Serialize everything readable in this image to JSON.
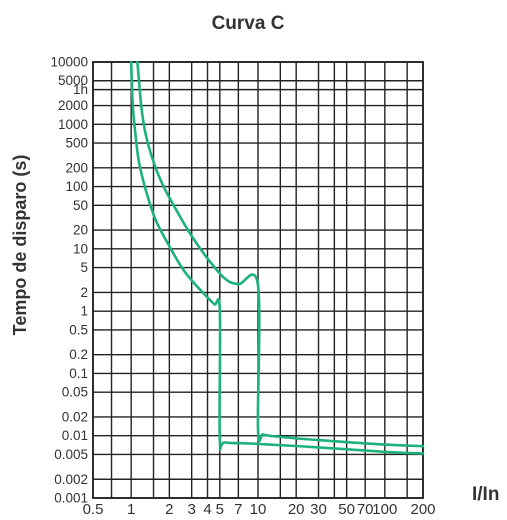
{
  "chart_data": {
    "type": "line",
    "title": "Curva C",
    "xlabel": "I/In",
    "ylabel": "Tempo de disparo (s)",
    "x_scale": "log",
    "y_scale": "log",
    "xlim": [
      0.5,
      200
    ],
    "ylim": [
      0.001,
      10000
    ],
    "grid": true,
    "line_color": "#1db27a",
    "y_ticks": [
      {
        "label": "10000",
        "value": 10000
      },
      {
        "label": "5000",
        "value": 5000
      },
      {
        "label": "1h",
        "value": 3600
      },
      {
        "label": "2000",
        "value": 2000
      },
      {
        "label": "1000",
        "value": 1000
      },
      {
        "label": "500",
        "value": 500
      },
      {
        "label": "200",
        "value": 200
      },
      {
        "label": "100",
        "value": 100
      },
      {
        "label": "50",
        "value": 50
      },
      {
        "label": "20",
        "value": 20
      },
      {
        "label": "10",
        "value": 10
      },
      {
        "label": "5",
        "value": 5
      },
      {
        "label": "2",
        "value": 2
      },
      {
        "label": "1",
        "value": 1
      },
      {
        "label": "0.5",
        "value": 0.5
      },
      {
        "label": "0.2",
        "value": 0.2
      },
      {
        "label": "0.1",
        "value": 0.1
      },
      {
        "label": "0.05",
        "value": 0.05
      },
      {
        "label": "0.02",
        "value": 0.02
      },
      {
        "label": "0.01",
        "value": 0.01
      },
      {
        "label": "0.005",
        "value": 0.005
      },
      {
        "label": "0.002",
        "value": 0.002
      },
      {
        "label": "0.001",
        "value": 0.001
      }
    ],
    "x_ticks": [
      {
        "label": "0.5",
        "value": 0.5
      },
      {
        "label": "1",
        "value": 1
      },
      {
        "label": "2",
        "value": 2
      },
      {
        "label": "3",
        "value": 3
      },
      {
        "label": "4",
        "value": 4
      },
      {
        "label": "5",
        "value": 5
      },
      {
        "label": "7",
        "value": 7
      },
      {
        "label": "10",
        "value": 10
      },
      {
        "label": "20",
        "value": 20
      },
      {
        "label": "30",
        "value": 30
      },
      {
        "label": "50",
        "value": 50
      },
      {
        "label": "70",
        "value": 70
      },
      {
        "label": "100",
        "value": 100
      },
      {
        "label": "200",
        "value": 200
      }
    ],
    "x_gridlines": [
      0.5,
      0.7,
      1,
      1.5,
      2,
      3,
      4,
      5,
      7,
      10,
      15,
      20,
      30,
      40,
      50,
      70,
      100,
      150,
      200
    ],
    "series": [
      {
        "points": [
          [
            1.12,
            10000
          ],
          [
            1.2,
            2000
          ],
          [
            1.3,
            700
          ],
          [
            1.5,
            250
          ],
          [
            1.8,
            100
          ],
          [
            2.3,
            40
          ],
          [
            3,
            16
          ],
          [
            4,
            7
          ],
          [
            5.5,
            3.3
          ],
          [
            7,
            2.7
          ],
          [
            10,
            2.6
          ],
          [
            10,
            0.013
          ],
          [
            11,
            0.0105
          ],
          [
            14,
            0.0097
          ],
          [
            30,
            0.0085
          ],
          [
            100,
            0.0072
          ],
          [
            200,
            0.0068
          ]
        ]
      },
      {
        "points": [
          [
            1.0,
            10000
          ],
          [
            1.03,
            2000
          ],
          [
            1.08,
            700
          ],
          [
            1.15,
            250
          ],
          [
            1.3,
            90
          ],
          [
            1.55,
            30
          ],
          [
            2,
            11
          ],
          [
            2.6,
            4.5
          ],
          [
            3.5,
            2.2
          ],
          [
            4.5,
            1.3
          ],
          [
            5,
            1.05
          ],
          [
            5,
            0.009
          ],
          [
            5.5,
            0.0078
          ],
          [
            10,
            0.0074
          ],
          [
            30,
            0.0065
          ],
          [
            100,
            0.0055
          ],
          [
            200,
            0.0052
          ]
        ]
      }
    ]
  }
}
